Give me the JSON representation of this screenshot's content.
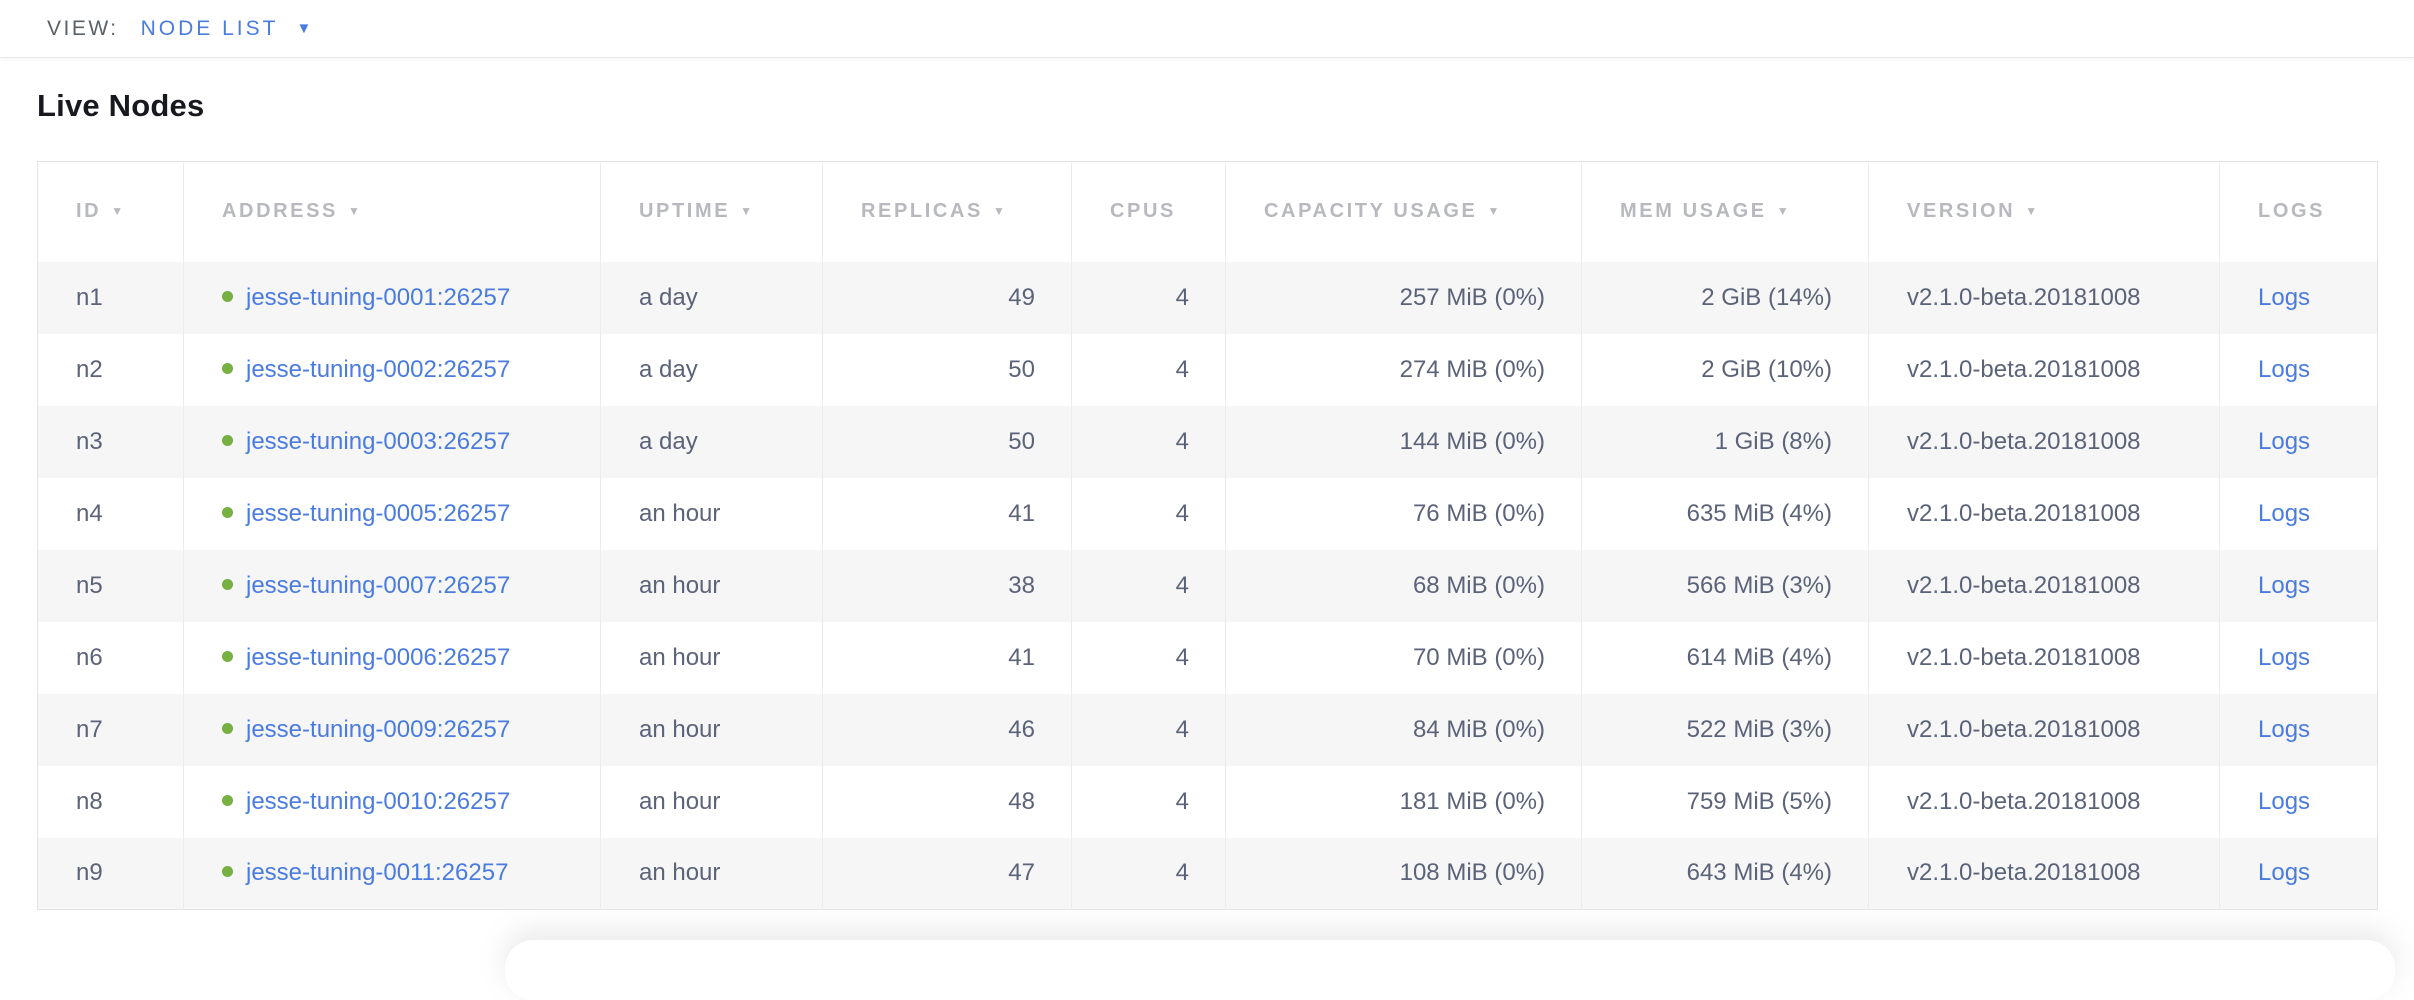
{
  "view_bar": {
    "label": "VIEW:",
    "selected": "NODE LIST"
  },
  "page": {
    "title": "Live Nodes"
  },
  "icons": {
    "sort_arrow": "▼",
    "dropdown_arrow": "▼"
  },
  "colors": {
    "link_blue": "#4a7be0",
    "status_green": "#76b041",
    "header_gray": "#b7b9be",
    "body_text_slate": "#5b6379",
    "row_alt_bg": "#f6f6f7"
  },
  "table": {
    "logs_label": "Logs",
    "columns": [
      {
        "label": "ID",
        "sortable": true
      },
      {
        "label": "ADDRESS",
        "sortable": true
      },
      {
        "label": "UPTIME",
        "sortable": true
      },
      {
        "label": "REPLICAS",
        "sortable": true
      },
      {
        "label": "CPUS",
        "sortable": false
      },
      {
        "label": "CAPACITY USAGE",
        "sortable": true
      },
      {
        "label": "MEM USAGE",
        "sortable": true
      },
      {
        "label": "VERSION",
        "sortable": true
      },
      {
        "label": "LOGS",
        "sortable": false
      }
    ],
    "rows": [
      {
        "id": "n1",
        "address": "jesse-tuning-0001:26257",
        "uptime": "a day",
        "replicas": "49",
        "cpus": "4",
        "capacity": "257 MiB (0%)",
        "mem": "2 GiB (14%)",
        "version": "v2.1.0-beta.20181008"
      },
      {
        "id": "n2",
        "address": "jesse-tuning-0002:26257",
        "uptime": "a day",
        "replicas": "50",
        "cpus": "4",
        "capacity": "274 MiB (0%)",
        "mem": "2 GiB (10%)",
        "version": "v2.1.0-beta.20181008"
      },
      {
        "id": "n3",
        "address": "jesse-tuning-0003:26257",
        "uptime": "a day",
        "replicas": "50",
        "cpus": "4",
        "capacity": "144 MiB (0%)",
        "mem": "1 GiB (8%)",
        "version": "v2.1.0-beta.20181008"
      },
      {
        "id": "n4",
        "address": "jesse-tuning-0005:26257",
        "uptime": "an hour",
        "replicas": "41",
        "cpus": "4",
        "capacity": "76 MiB (0%)",
        "mem": "635 MiB (4%)",
        "version": "v2.1.0-beta.20181008"
      },
      {
        "id": "n5",
        "address": "jesse-tuning-0007:26257",
        "uptime": "an hour",
        "replicas": "38",
        "cpus": "4",
        "capacity": "68 MiB (0%)",
        "mem": "566 MiB (3%)",
        "version": "v2.1.0-beta.20181008"
      },
      {
        "id": "n6",
        "address": "jesse-tuning-0006:26257",
        "uptime": "an hour",
        "replicas": "41",
        "cpus": "4",
        "capacity": "70 MiB (0%)",
        "mem": "614 MiB (4%)",
        "version": "v2.1.0-beta.20181008"
      },
      {
        "id": "n7",
        "address": "jesse-tuning-0009:26257",
        "uptime": "an hour",
        "replicas": "46",
        "cpus": "4",
        "capacity": "84 MiB (0%)",
        "mem": "522 MiB (3%)",
        "version": "v2.1.0-beta.20181008"
      },
      {
        "id": "n8",
        "address": "jesse-tuning-0010:26257",
        "uptime": "an hour",
        "replicas": "48",
        "cpus": "4",
        "capacity": "181 MiB (0%)",
        "mem": "759 MiB (5%)",
        "version": "v2.1.0-beta.20181008"
      },
      {
        "id": "n9",
        "address": "jesse-tuning-0011:26257",
        "uptime": "an hour",
        "replicas": "47",
        "cpus": "4",
        "capacity": "108 MiB (0%)",
        "mem": "643 MiB (4%)",
        "version": "v2.1.0-beta.20181008"
      }
    ]
  }
}
